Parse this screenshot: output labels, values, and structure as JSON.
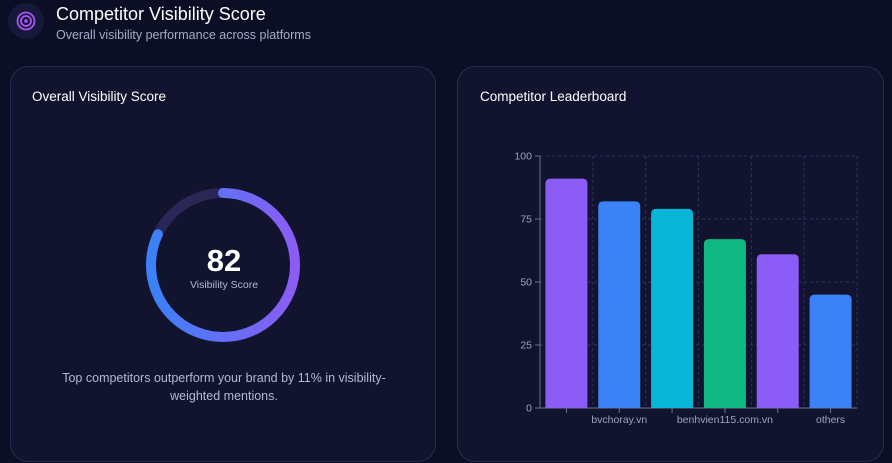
{
  "header": {
    "title": "Competitor Visibility Score",
    "subtitle": "Overall visibility performance across platforms",
    "icon": "target-icon"
  },
  "score_card": {
    "title": "Overall Visibility Score",
    "score": 82,
    "score_max": 100,
    "score_label": "Visibility Score",
    "summary": "Top competitors outperform your brand by 11% in visibility-weighted mentions."
  },
  "leaderboard": {
    "title": "Competitor Leaderboard"
  },
  "chart_data": {
    "type": "bar",
    "title": "Competitor Leaderboard",
    "categories": [
      "",
      "bvchoray.vn",
      "",
      "benhvien115.com.vn",
      "",
      "others"
    ],
    "values": [
      91,
      82,
      79,
      67,
      61,
      45
    ],
    "colors": [
      "#8b5cf6",
      "#3b82f6",
      "#06b6d4",
      "#10b981",
      "#8b5cf6",
      "#3b82f6"
    ],
    "ylim": [
      0,
      100
    ],
    "yticks": [
      0,
      25,
      50,
      75,
      100
    ],
    "grid": true,
    "xlabel": "",
    "ylabel": ""
  }
}
